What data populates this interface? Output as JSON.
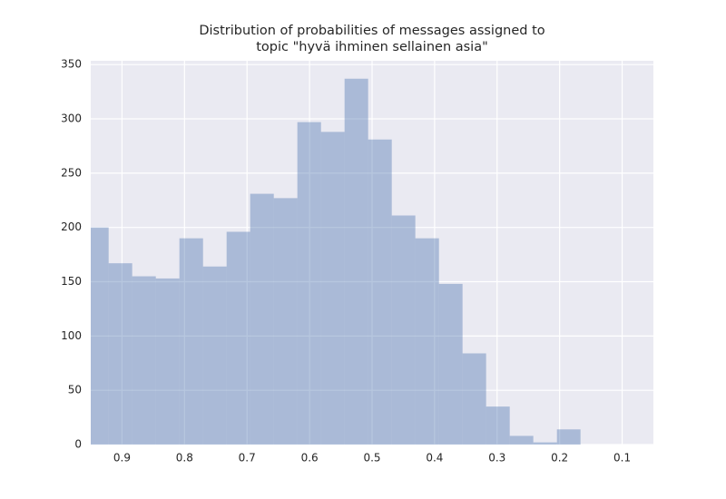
{
  "chart_data": {
    "type": "histogram",
    "title": [
      "Distribution of probabilities of messages assigned to",
      "topic \"hyvä ihminen sellainen asia\""
    ],
    "bins": [
      0.1666,
      0.2043,
      0.2421,
      0.2798,
      0.3176,
      0.3553,
      0.393,
      0.4308,
      0.4685,
      0.5063,
      0.544,
      0.5817,
      0.6195,
      0.6572,
      0.695,
      0.7327,
      0.7704,
      0.8082,
      0.8459,
      0.8837,
      0.9214,
      0.9591
    ],
    "counts": [
      14,
      2,
      8,
      35,
      84,
      148,
      190,
      211,
      281,
      337,
      288,
      297,
      227,
      231,
      196,
      164,
      190,
      153,
      155,
      167,
      200
    ],
    "color": "#4c72b0",
    "xlim": [
      0.95,
      0.05
    ],
    "xticks": [
      0.9,
      0.8,
      0.7,
      0.6,
      0.5,
      0.4,
      0.3,
      0.2,
      0.1
    ],
    "ylim": [
      0,
      353.5
    ],
    "yticks": [
      0,
      50,
      100,
      150,
      200,
      250,
      300,
      350
    ],
    "grid": true
  }
}
